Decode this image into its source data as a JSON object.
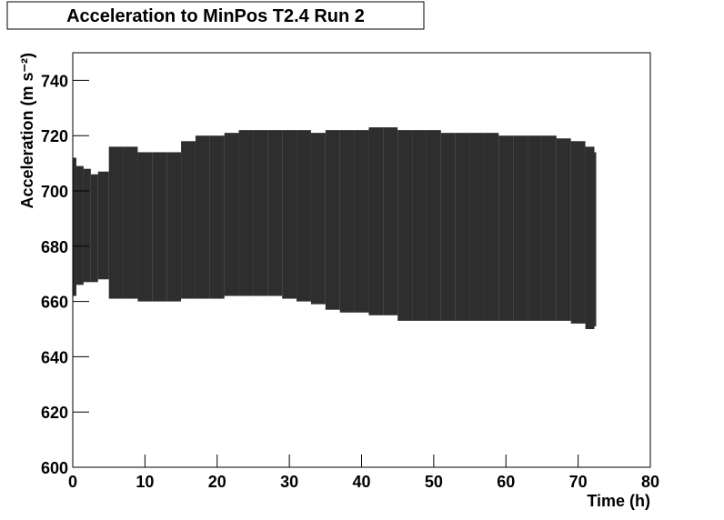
{
  "chart_data": {
    "type": "range",
    "title": "Acceleration to MinPos T2.4 Run 2",
    "xlabel": "Time (h)",
    "ylabel": "Acceleration (m s⁻²)",
    "x": [
      0,
      1,
      2,
      3,
      4,
      6,
      8,
      10,
      12,
      14,
      16,
      18,
      20,
      22,
      24,
      26,
      28,
      30,
      32,
      34,
      36,
      38,
      40,
      42,
      44,
      46,
      48,
      50,
      52,
      54,
      56,
      58,
      60,
      62,
      64,
      66,
      68,
      70,
      72,
      72.5
    ],
    "low": [
      662,
      666,
      667,
      667,
      668,
      661,
      661,
      660,
      660,
      660,
      661,
      661,
      661,
      662,
      662,
      662,
      662,
      661,
      660,
      659,
      657,
      656,
      656,
      655,
      655,
      653,
      653,
      653,
      653,
      653,
      653,
      653,
      653,
      653,
      653,
      653,
      653,
      652,
      650,
      651
    ],
    "high": [
      712,
      709,
      708,
      706,
      707,
      716,
      716,
      714,
      714,
      714,
      718,
      720,
      720,
      721,
      722,
      722,
      722,
      722,
      722,
      721,
      722,
      722,
      722,
      723,
      723,
      722,
      722,
      722,
      721,
      721,
      721,
      721,
      720,
      720,
      720,
      720,
      719,
      718,
      716,
      714
    ],
    "color": "#000000",
    "xlim": [
      0,
      80
    ],
    "xticks": [
      0,
      10,
      20,
      30,
      40,
      50,
      60,
      70,
      80
    ],
    "ylim": [
      600,
      750
    ],
    "yticks": [
      600,
      620,
      640,
      660,
      680,
      700,
      720,
      740
    ]
  }
}
